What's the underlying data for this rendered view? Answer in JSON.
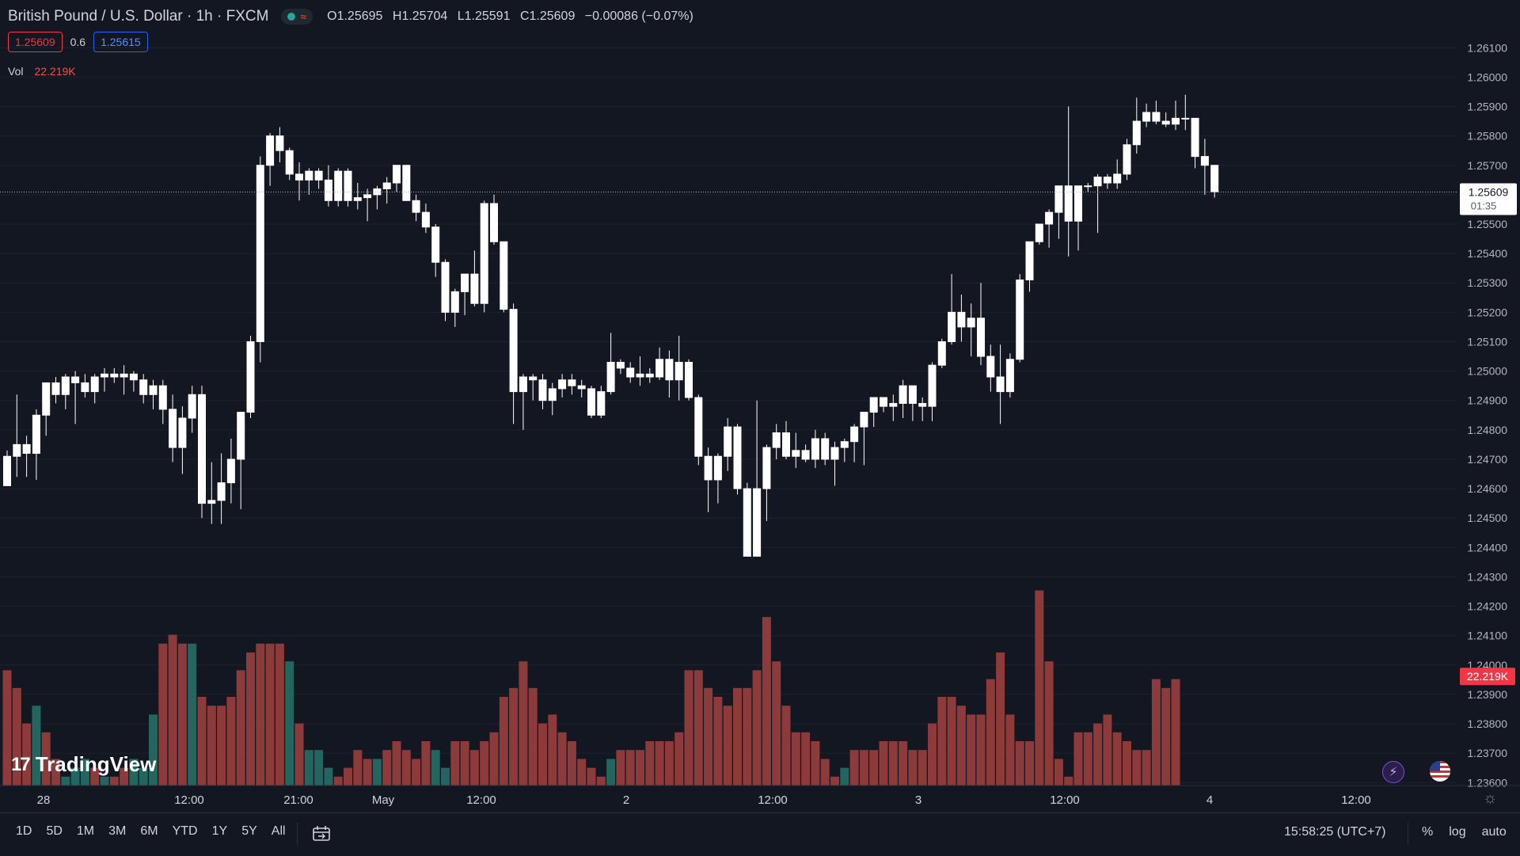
{
  "header": {
    "title": "British Pound / U.S. Dollar · 1h · FXCM",
    "open_label": "O",
    "open": "1.25695",
    "high_label": "H",
    "high": "1.25704",
    "low_label": "L",
    "low": "1.25591",
    "close_label": "C",
    "close": "1.25609",
    "change": "−0.00086 (−0.07%)"
  },
  "trade": {
    "sell": "1.25609",
    "spread": "0.6",
    "buy": "1.25615"
  },
  "volume_legend": {
    "label": "Vol",
    "value": "22.219K"
  },
  "price_scale": {
    "last_price": "1.25609",
    "countdown": "01:35",
    "volume_badge": "22.219K"
  },
  "time_axis": [
    "28",
    "12:00",
    "21:00",
    "May",
    "12:00",
    "2",
    "12:00",
    "3",
    "12:00",
    "4",
    "12:00"
  ],
  "bottom_bar": {
    "ranges": [
      "1D",
      "5D",
      "1M",
      "3M",
      "6M",
      "YTD",
      "1Y",
      "5Y",
      "All"
    ],
    "clock": "15:58:25 (UTC+7)",
    "percent": "%",
    "log": "log",
    "auto": "auto"
  },
  "branding": "TradingView",
  "colors": {
    "background": "#131722",
    "up_candle": "#ffffff",
    "down_candle": "#ffffff",
    "vol_up": "#22665f",
    "vol_down": "#8c3a3a",
    "grid": "#1e222d"
  },
  "chart_data": {
    "type": "candlestick",
    "title": "British Pound / U.S. Dollar · 1h · FXCM",
    "y_ticks": [
      "1.26100",
      "1.26000",
      "1.25900",
      "1.25800",
      "1.25700",
      "1.25600",
      "1.25500",
      "1.25400",
      "1.25300",
      "1.25200",
      "1.25100",
      "1.25000",
      "1.24900",
      "1.24800",
      "1.24700",
      "1.24600",
      "1.24500",
      "1.24400",
      "1.24300",
      "1.24200",
      "1.24100",
      "1.24000",
      "1.23900",
      "1.23800",
      "1.23700",
      "1.23600"
    ],
    "ylim": [
      1.2359,
      1.2616
    ],
    "grid": true,
    "candles": [
      [
        1.2461,
        1.2473,
        1.2461,
        1.2471
      ],
      [
        1.2471,
        1.2492,
        1.2464,
        1.2475
      ],
      [
        1.2475,
        1.2478,
        1.2464,
        1.2472
      ],
      [
        1.2472,
        1.2487,
        1.2463,
        1.2485
      ],
      [
        1.2485,
        1.2494,
        1.2478,
        1.2496
      ],
      [
        1.2496,
        1.2498,
        1.2489,
        1.2492
      ],
      [
        1.2492,
        1.2499,
        1.2487,
        1.2498
      ],
      [
        1.2498,
        1.25,
        1.2482,
        1.2496
      ],
      [
        1.2496,
        1.2499,
        1.2491,
        1.2493
      ],
      [
        1.2493,
        1.2499,
        1.2489,
        1.2498
      ],
      [
        1.2498,
        1.2501,
        1.2493,
        1.2499
      ],
      [
        1.2499,
        1.2501,
        1.2496,
        1.2498
      ],
      [
        1.2498,
        1.2502,
        1.2492,
        1.2499
      ],
      [
        1.2499,
        1.25,
        1.2493,
        1.2497
      ],
      [
        1.2497,
        1.2499,
        1.2489,
        1.2492
      ],
      [
        1.2492,
        1.2497,
        1.2487,
        1.2495
      ],
      [
        1.2495,
        1.2497,
        1.2482,
        1.2487
      ],
      [
        1.2487,
        1.2492,
        1.2469,
        1.2474
      ],
      [
        1.2474,
        1.2488,
        1.2465,
        1.2484
      ],
      [
        1.2484,
        1.2495,
        1.2479,
        1.2492
      ],
      [
        1.2492,
        1.2495,
        1.245,
        1.2455
      ],
      [
        1.2455,
        1.2469,
        1.2448,
        1.2456
      ],
      [
        1.2456,
        1.2472,
        1.2448,
        1.2462
      ],
      [
        1.2462,
        1.2477,
        1.2455,
        1.247
      ],
      [
        1.247,
        1.2486,
        1.2453,
        1.2486
      ],
      [
        1.2486,
        1.2512,
        1.2484,
        1.251
      ],
      [
        1.251,
        1.2573,
        1.2503,
        1.257
      ],
      [
        1.257,
        1.2581,
        1.2563,
        1.258
      ],
      [
        1.258,
        1.2583,
        1.2571,
        1.2575
      ],
      [
        1.2575,
        1.2576,
        1.2565,
        1.2567
      ],
      [
        1.2567,
        1.2571,
        1.2558,
        1.2565
      ],
      [
        1.2565,
        1.2569,
        1.256,
        1.2568
      ],
      [
        1.2568,
        1.2569,
        1.2562,
        1.2565
      ],
      [
        1.2565,
        1.257,
        1.2556,
        1.2558
      ],
      [
        1.2558,
        1.2569,
        1.2556,
        1.2568
      ],
      [
        1.2568,
        1.2569,
        1.2556,
        1.2558
      ],
      [
        1.2558,
        1.2564,
        1.2555,
        1.2559
      ],
      [
        1.2559,
        1.2562,
        1.2551,
        1.256
      ],
      [
        1.256,
        1.2563,
        1.2555,
        1.2562
      ],
      [
        1.2562,
        1.2566,
        1.2557,
        1.2564
      ],
      [
        1.2564,
        1.257,
        1.2561,
        1.257
      ],
      [
        1.257,
        1.257,
        1.2558,
        1.2558
      ],
      [
        1.2558,
        1.256,
        1.2551,
        1.2554
      ],
      [
        1.2554,
        1.2557,
        1.2547,
        1.2549
      ],
      [
        1.2549,
        1.255,
        1.2532,
        1.2537
      ],
      [
        1.2537,
        1.2538,
        1.2517,
        1.252
      ],
      [
        1.252,
        1.2528,
        1.2515,
        1.2527
      ],
      [
        1.2527,
        1.2533,
        1.2519,
        1.2533
      ],
      [
        1.2533,
        1.2541,
        1.2522,
        1.2523
      ],
      [
        1.2523,
        1.2558,
        1.252,
        1.2557
      ],
      [
        1.2557,
        1.256,
        1.2543,
        1.2544
      ],
      [
        1.2544,
        1.2544,
        1.252,
        1.2521
      ],
      [
        1.2521,
        1.2523,
        1.2482,
        1.2493
      ],
      [
        1.2493,
        1.2499,
        1.248,
        1.2498
      ],
      [
        1.2498,
        1.2499,
        1.249,
        1.2497
      ],
      [
        1.2497,
        1.2499,
        1.2487,
        1.249
      ],
      [
        1.249,
        1.2496,
        1.2485,
        1.2494
      ],
      [
        1.2494,
        1.2499,
        1.2491,
        1.2497
      ],
      [
        1.2497,
        1.2499,
        1.2492,
        1.2495
      ],
      [
        1.2495,
        1.2497,
        1.2491,
        1.2494
      ],
      [
        1.2494,
        1.2495,
        1.2484,
        1.2485
      ],
      [
        1.2485,
        1.2495,
        1.2484,
        1.2493
      ],
      [
        1.2493,
        1.2513,
        1.2492,
        1.2503
      ],
      [
        1.2503,
        1.2504,
        1.2499,
        1.2501
      ],
      [
        1.2501,
        1.2503,
        1.2496,
        1.2498
      ],
      [
        1.2498,
        1.2505,
        1.2495,
        1.2499
      ],
      [
        1.2499,
        1.2501,
        1.2496,
        1.2498
      ],
      [
        1.2498,
        1.2508,
        1.2497,
        1.2504
      ],
      [
        1.2504,
        1.2507,
        1.2491,
        1.2497
      ],
      [
        1.2497,
        1.2512,
        1.249,
        1.2503
      ],
      [
        1.2503,
        1.2504,
        1.249,
        1.2491
      ],
      [
        1.2491,
        1.2492,
        1.2468,
        1.2471
      ],
      [
        1.2471,
        1.2474,
        1.2452,
        1.2463
      ],
      [
        1.2463,
        1.2472,
        1.2455,
        1.2471
      ],
      [
        1.2471,
        1.2484,
        1.2466,
        1.2481
      ],
      [
        1.2481,
        1.2482,
        1.2458,
        1.246
      ],
      [
        1.246,
        1.2462,
        1.2438,
        1.2437
      ],
      [
        1.2437,
        1.249,
        1.2437,
        1.246
      ],
      [
        1.246,
        1.2475,
        1.2449,
        1.2474
      ],
      [
        1.2474,
        1.2482,
        1.247,
        1.2479
      ],
      [
        1.2479,
        1.2483,
        1.247,
        1.2471
      ],
      [
        1.2471,
        1.2479,
        1.2467,
        1.2473
      ],
      [
        1.2473,
        1.2475,
        1.2469,
        1.247
      ],
      [
        1.247,
        1.248,
        1.2467,
        1.2477
      ],
      [
        1.2477,
        1.2479,
        1.2468,
        1.247
      ],
      [
        1.247,
        1.2476,
        1.2461,
        1.2474
      ],
      [
        1.2474,
        1.2477,
        1.2469,
        1.2476
      ],
      [
        1.2476,
        1.2482,
        1.2469,
        1.2481
      ],
      [
        1.2481,
        1.2484,
        1.2468,
        1.2486
      ],
      [
        1.2486,
        1.2491,
        1.2481,
        1.2491
      ],
      [
        1.2491,
        1.2491,
        1.2486,
        1.2488
      ],
      [
        1.2488,
        1.2492,
        1.2483,
        1.2489
      ],
      [
        1.2489,
        1.2497,
        1.2484,
        1.2495
      ],
      [
        1.2495,
        1.2495,
        1.2483,
        1.2489
      ],
      [
        1.2489,
        1.2491,
        1.2483,
        1.2488
      ],
      [
        1.2488,
        1.2503,
        1.2483,
        1.2502
      ],
      [
        1.2502,
        1.2511,
        1.2501,
        1.251
      ],
      [
        1.251,
        1.2533,
        1.2509,
        1.252
      ],
      [
        1.252,
        1.2526,
        1.251,
        1.2515
      ],
      [
        1.2515,
        1.2523,
        1.2505,
        1.2518
      ],
      [
        1.2518,
        1.253,
        1.2502,
        1.2505
      ],
      [
        1.2505,
        1.2509,
        1.2493,
        1.2498
      ],
      [
        1.2498,
        1.2509,
        1.2482,
        1.2493
      ],
      [
        1.2493,
        1.2506,
        1.2491,
        1.2504
      ],
      [
        1.2504,
        1.2533,
        1.2503,
        1.2531
      ],
      [
        1.2531,
        1.2544,
        1.2527,
        1.2544
      ],
      [
        1.2544,
        1.2549,
        1.2543,
        1.255
      ],
      [
        1.255,
        1.2555,
        1.2542,
        1.2554
      ],
      [
        1.2554,
        1.2563,
        1.2545,
        1.2563
      ],
      [
        1.2563,
        1.259,
        1.2539,
        1.2551
      ],
      [
        1.2551,
        1.2563,
        1.2541,
        1.2563
      ],
      [
        1.2563,
        1.2564,
        1.2561,
        1.2563
      ],
      [
        1.2563,
        1.2567,
        1.2547,
        1.2566
      ],
      [
        1.2566,
        1.2567,
        1.2562,
        1.2564
      ],
      [
        1.2564,
        1.2572,
        1.2562,
        1.2567
      ],
      [
        1.2567,
        1.2579,
        1.2565,
        1.2577
      ],
      [
        1.2577,
        1.2593,
        1.2574,
        1.2585
      ],
      [
        1.2585,
        1.2591,
        1.2583,
        1.2588
      ],
      [
        1.2588,
        1.2592,
        1.2584,
        1.2585
      ],
      [
        1.2585,
        1.2588,
        1.2583,
        1.2584
      ],
      [
        1.2584,
        1.2592,
        1.2582,
        1.2586
      ],
      [
        1.2586,
        1.2594,
        1.2582,
        1.2586
      ],
      [
        1.2586,
        1.2586,
        1.2569,
        1.2573
      ],
      [
        1.2573,
        1.2579,
        1.256,
        1.257
      ],
      [
        1.257,
        1.257,
        1.2559,
        1.2561
      ]
    ],
    "volume": [
      [
        13,
        1
      ],
      [
        11,
        1
      ],
      [
        7,
        1
      ],
      [
        9,
        0
      ],
      [
        6,
        1
      ],
      [
        3,
        1
      ],
      [
        1,
        0
      ],
      [
        2,
        0
      ],
      [
        3,
        0
      ],
      [
        2,
        1
      ],
      [
        1,
        0
      ],
      [
        1,
        1
      ],
      [
        2,
        1
      ],
      [
        3,
        0
      ],
      [
        2,
        0
      ],
      [
        8,
        0
      ],
      [
        16,
        1
      ],
      [
        17,
        1
      ],
      [
        16,
        1
      ],
      [
        16,
        0
      ],
      [
        10,
        1
      ],
      [
        9,
        1
      ],
      [
        9,
        1
      ],
      [
        10,
        1
      ],
      [
        13,
        1
      ],
      [
        15,
        1
      ],
      [
        16,
        1
      ],
      [
        16,
        1
      ],
      [
        16,
        1
      ],
      [
        14,
        0
      ],
      [
        7,
        1
      ],
      [
        4,
        0
      ],
      [
        4,
        0
      ],
      [
        2,
        0
      ],
      [
        1,
        1
      ],
      [
        2,
        1
      ],
      [
        4,
        1
      ],
      [
        3,
        1
      ],
      [
        3,
        0
      ],
      [
        4,
        1
      ],
      [
        5,
        1
      ],
      [
        4,
        1
      ],
      [
        3,
        1
      ],
      [
        5,
        1
      ],
      [
        4,
        0
      ],
      [
        2,
        0
      ],
      [
        5,
        1
      ],
      [
        5,
        1
      ],
      [
        4,
        1
      ],
      [
        5,
        1
      ],
      [
        6,
        1
      ],
      [
        10,
        1
      ],
      [
        11,
        1
      ],
      [
        14,
        1
      ],
      [
        11,
        1
      ],
      [
        7,
        1
      ],
      [
        8,
        1
      ],
      [
        6,
        1
      ],
      [
        5,
        1
      ],
      [
        3,
        1
      ],
      [
        2,
        1
      ],
      [
        1,
        1
      ],
      [
        3,
        0
      ],
      [
        4,
        1
      ],
      [
        4,
        1
      ],
      [
        4,
        1
      ],
      [
        5,
        1
      ],
      [
        5,
        1
      ],
      [
        5,
        1
      ],
      [
        6,
        1
      ],
      [
        13,
        1
      ],
      [
        13,
        1
      ],
      [
        11,
        1
      ],
      [
        10,
        1
      ],
      [
        9,
        1
      ],
      [
        11,
        1
      ],
      [
        11,
        1
      ],
      [
        13,
        1
      ],
      [
        19,
        1
      ],
      [
        14,
        1
      ],
      [
        9,
        1
      ],
      [
        6,
        1
      ],
      [
        6,
        1
      ],
      [
        5,
        1
      ],
      [
        3,
        1
      ],
      [
        1,
        1
      ],
      [
        2,
        0
      ],
      [
        4,
        1
      ],
      [
        4,
        1
      ],
      [
        4,
        1
      ],
      [
        5,
        1
      ],
      [
        5,
        1
      ],
      [
        5,
        1
      ],
      [
        4,
        1
      ],
      [
        4,
        1
      ],
      [
        7,
        1
      ],
      [
        10,
        1
      ],
      [
        10,
        1
      ],
      [
        9,
        1
      ],
      [
        8,
        1
      ],
      [
        8,
        1
      ],
      [
        12,
        1
      ],
      [
        15,
        1
      ],
      [
        8,
        1
      ],
      [
        5,
        1
      ],
      [
        5,
        1
      ],
      [
        22,
        1
      ],
      [
        14,
        1
      ],
      [
        3,
        1
      ],
      [
        1,
        1
      ],
      [
        6,
        1
      ],
      [
        6,
        1
      ],
      [
        7,
        1
      ],
      [
        8,
        1
      ],
      [
        6,
        1
      ],
      [
        5,
        1
      ],
      [
        4,
        1
      ],
      [
        4,
        1
      ],
      [
        12,
        1
      ],
      [
        11,
        1
      ],
      [
        12,
        1
      ]
    ],
    "last_price": 1.25609
  }
}
